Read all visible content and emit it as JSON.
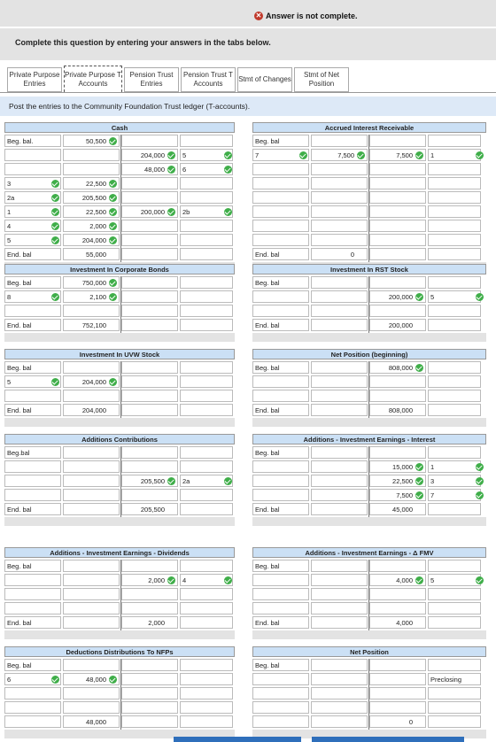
{
  "alert": "Answer is not complete.",
  "instruction": "Complete this question by entering your answers in the tabs below.",
  "tabs": [
    {
      "label": "Private Purpose Entries",
      "active": false
    },
    {
      "label": "Private Purpose T Accounts",
      "active": true
    },
    {
      "label": "Pension Trust Entries",
      "active": false
    },
    {
      "label": "Pension Trust T Accounts",
      "active": false
    },
    {
      "label": "Stmt of Changes",
      "active": false
    },
    {
      "label": "Stmt of Net Position",
      "active": false
    }
  ],
  "post_text": "Post the entries to the Community Foundation Trust ledger (T-accounts).",
  "accounts": {
    "cash": {
      "title": "Cash"
    },
    "air": {
      "title": "Accrued Interest Receivable"
    },
    "icb": {
      "title": "Investment In Corporate Bonds"
    },
    "rst": {
      "title": "Investment In RST Stock"
    },
    "uvw": {
      "title": "Investment In UVW Stock"
    },
    "npb": {
      "title": "Net Position (beginning)"
    },
    "ac": {
      "title": "Additions Contributions"
    },
    "aei": {
      "title": "Additions - Investment Earnings - Interest"
    },
    "aed": {
      "title": "Additions - Investment Earnings - Dividends"
    },
    "fmv": {
      "title": "Additions - Investment Earnings - Δ FMV"
    },
    "dd": {
      "title": "Deductions Distributions To NFPs"
    },
    "np": {
      "title": "Net Position"
    }
  },
  "labels": {
    "beg": "Beg. bal",
    "beg_dot": "Beg. bal.",
    "begbal": "Beg.bal",
    "end": "End. bal"
  },
  "vals": {
    "cash_beg": "50,500",
    "cash_c1": "204,000",
    "cash_c1r": "5",
    "cash_c2": "48,000",
    "cash_c2r": "6",
    "cash_r3": "3",
    "cash_d3": "22,500",
    "cash_r2a": "2a",
    "cash_d2a": "205,500",
    "cash_r1": "1",
    "cash_d1": "22,500",
    "cash_c2b": "200,000",
    "cash_c2br": "2b",
    "cash_r4": "4",
    "cash_d4": "2,000",
    "cash_r5": "5",
    "cash_d5": "204,000",
    "cash_end": "55,000",
    "air_r7": "7",
    "air_d7": "7,500",
    "air_c1": "7,500",
    "air_c1r": "1",
    "air_end": "0",
    "icb_beg": "750,000",
    "icb_r8": "8",
    "icb_d8": "2,100",
    "icb_end": "752,100",
    "rst_c5": "200,000",
    "rst_c5r": "5",
    "rst_end": "200,000",
    "uvw_r5": "5",
    "uvw_d5": "204,000",
    "uvw_end": "204,000",
    "npb_beg": "808,000",
    "npb_end": "808,000",
    "ac_c": "205,500",
    "ac_cr": "2a",
    "ac_end": "205,500",
    "aei_c1": "15,000",
    "aei_c1r": "1",
    "aei_c2": "22,500",
    "aei_c2r": "3",
    "aei_c3": "7,500",
    "aei_c3r": "7",
    "aei_end": "45,000",
    "aed_c": "2,000",
    "aed_cr": "4",
    "aed_end": "2,000",
    "fmv_c": "4,000",
    "fmv_cr": "5",
    "fmv_end": "4,000",
    "dd_r6": "6",
    "dd_d6": "48,000",
    "dd_end": "48,000",
    "np_pre": "Preclosing",
    "np_end": "0"
  }
}
